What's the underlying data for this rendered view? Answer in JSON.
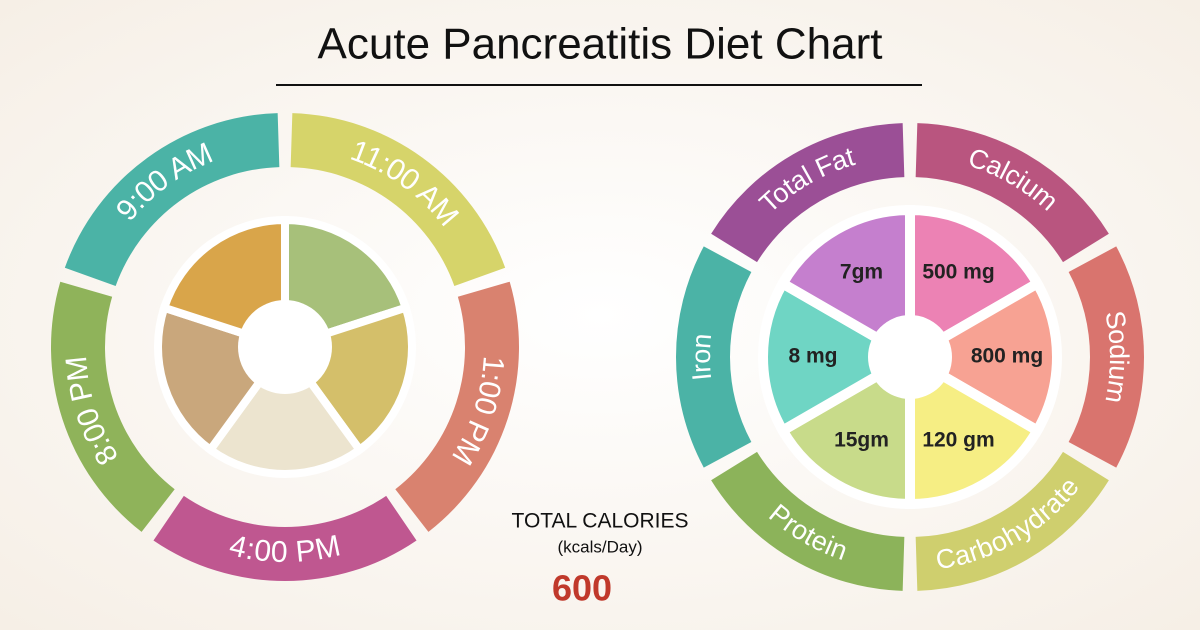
{
  "title": "Acute Pancreatitis Diet Chart",
  "meals": [
    {
      "time": "11:00 AM"
    },
    {
      "time": "1:00 PM"
    },
    {
      "time": "4:00 PM"
    },
    {
      "time": "8:00 PM"
    },
    {
      "time": "9:00 AM"
    }
  ],
  "calories": {
    "label": "TOTAL CALORIES",
    "unit": "(kcals/Day)",
    "value": 600
  },
  "nutrients": [
    {
      "name": "Calcium",
      "amount": "500 mg"
    },
    {
      "name": "Sodium",
      "amount": "800 mg"
    },
    {
      "name": "Carbohydrate",
      "amount": "120 gm"
    },
    {
      "name": "Protein",
      "amount": "15gm"
    },
    {
      "name": "Iron",
      "amount": "8 mg"
    },
    {
      "name": "Total Fat",
      "amount": "7gm"
    }
  ]
}
